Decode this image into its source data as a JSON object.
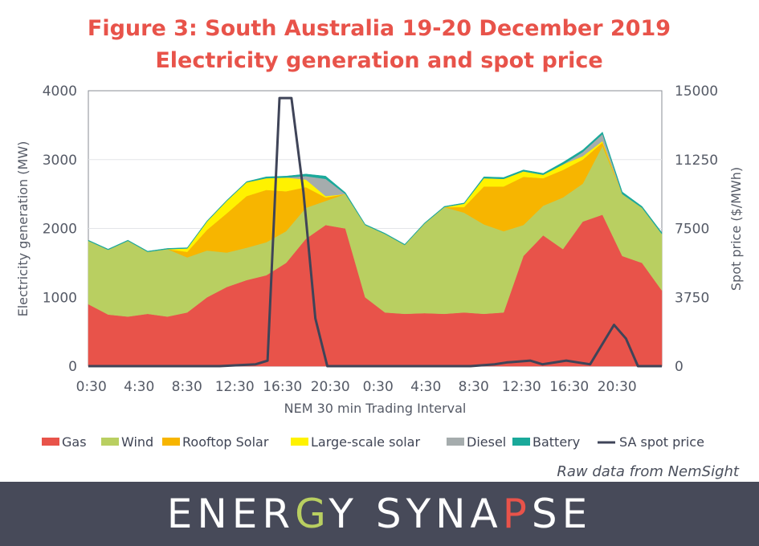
{
  "chart_data": {
    "type": "area",
    "title": "Figure 3: South Australia 19-20 December 2019",
    "subtitle": "Electricity generation and spot price",
    "xlabel": "NEM 30 min Trading Interval",
    "ylabel": "Electricity generation (MW)",
    "y2label": "Spot price ($/MWh)",
    "x_tick_labels": [
      "0:30",
      "4:30",
      "8:30",
      "12:30",
      "16:30",
      "20:30",
      "0:30",
      "4:30",
      "8:30",
      "12:30",
      "16:30",
      "20:30"
    ],
    "y_ticks": [
      "0",
      "1000",
      "2000",
      "3000",
      "4000"
    ],
    "y2_ticks": [
      "0",
      "3750",
      "7500",
      "11250",
      "15000"
    ],
    "ylim": [
      0,
      4000
    ],
    "y2lim": [
      0,
      15000
    ],
    "intervals": 96,
    "stacked": true,
    "series": [
      {
        "name": "Gas",
        "color": "#e8534a",
        "values": [
          900,
          750,
          720,
          760,
          720,
          780,
          1000,
          1150,
          1250,
          1320,
          1500,
          1850,
          2050,
          2000,
          1000,
          780,
          760,
          770,
          760,
          780,
          760,
          780,
          1600,
          1900,
          1700,
          2100,
          2200,
          1600,
          1500,
          1100
        ]
      },
      {
        "name": "Wind",
        "color": "#b9cf61",
        "values": [
          920,
          940,
          1100,
          900,
          980,
          800,
          680,
          500,
          470,
          480,
          460,
          450,
          350,
          500,
          1050,
          1140,
          1000,
          1300,
          1550,
          1450,
          1300,
          1180,
          450,
          430,
          750,
          550,
          1000,
          900,
          800,
          820
        ]
      },
      {
        "name": "Rooftop Solar",
        "color": "#f7b500",
        "values": [
          0,
          0,
          0,
          0,
          0,
          80,
          300,
          570,
          750,
          760,
          580,
          300,
          50,
          0,
          0,
          0,
          0,
          0,
          0,
          80,
          550,
          650,
          700,
          400,
          400,
          350,
          50,
          0,
          0,
          0
        ]
      },
      {
        "name": "Large-scale solar",
        "color": "#fff200",
        "values": [
          0,
          0,
          0,
          0,
          0,
          50,
          120,
          180,
          200,
          170,
          200,
          110,
          20,
          0,
          0,
          0,
          0,
          0,
          0,
          50,
          120,
          110,
          80,
          50,
          80,
          50,
          20,
          0,
          0,
          0
        ]
      },
      {
        "name": "Diesel",
        "color": "#a5acad",
        "values": [
          0,
          0,
          0,
          0,
          0,
          0,
          0,
          0,
          0,
          0,
          0,
          50,
          250,
          0,
          0,
          0,
          0,
          0,
          0,
          0,
          0,
          0,
          0,
          0,
          0,
          60,
          100,
          0,
          0,
          0
        ]
      },
      {
        "name": "Battery",
        "color": "#1aa99a",
        "values": [
          10,
          10,
          10,
          10,
          10,
          10,
          10,
          10,
          10,
          20,
          20,
          30,
          40,
          20,
          10,
          10,
          10,
          10,
          10,
          10,
          20,
          20,
          20,
          20,
          30,
          30,
          30,
          30,
          20,
          20
        ]
      }
    ],
    "line_series": {
      "name": "SA spot price",
      "color": "#3f4458",
      "axis": "right",
      "points": [
        [
          0,
          0
        ],
        [
          22,
          0
        ],
        [
          28,
          100
        ],
        [
          30,
          300
        ],
        [
          32,
          14600
        ],
        [
          34,
          14600
        ],
        [
          36,
          9500
        ],
        [
          38,
          2600
        ],
        [
          40,
          0
        ],
        [
          45,
          0
        ],
        [
          55,
          0
        ],
        [
          64,
          0
        ],
        [
          68,
          100
        ],
        [
          70,
          200
        ],
        [
          74,
          300
        ],
        [
          76,
          100
        ],
        [
          80,
          300
        ],
        [
          82,
          200
        ],
        [
          84,
          100
        ],
        [
          88,
          2250
        ],
        [
          90,
          1500
        ],
        [
          92,
          0
        ],
        [
          96,
          0
        ]
      ]
    },
    "source": "Raw data from NemSight"
  },
  "footer": {
    "logo_text": "ENERGY SYNAPSE",
    "logo_letter_colors": [
      "#ffffff",
      "#ffffff",
      "#ffffff",
      "#ffffff",
      "#b9cf61",
      "#ffffff",
      "#ffffff",
      "#ffffff",
      "#ffffff",
      "#ffffff",
      "#ffffff",
      "#e8534a",
      "#ffffff",
      "#ffffff"
    ]
  }
}
